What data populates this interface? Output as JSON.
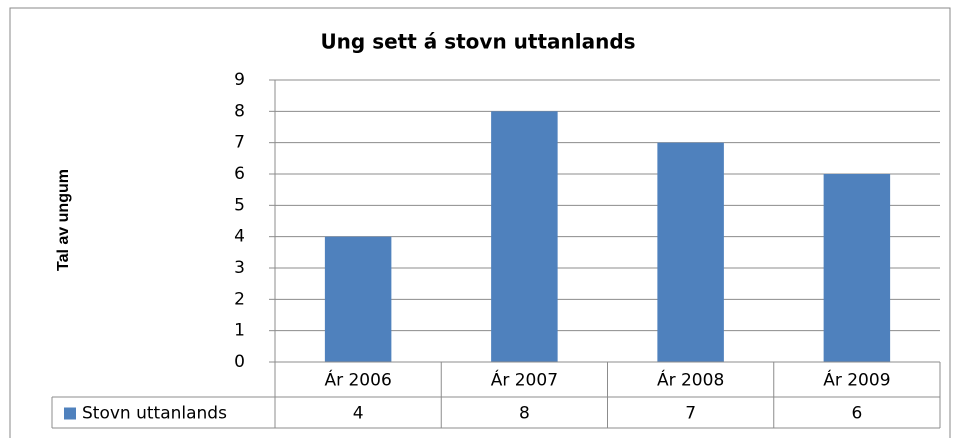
{
  "chart_data": {
    "type": "bar",
    "title": "Ung sett á stovn uttanlands",
    "y_label": "Tal av ungum",
    "categories": [
      "Ár 2006",
      "Ár 2007",
      "Ár 2008",
      "Ár 2009"
    ],
    "series": [
      {
        "name": "Stovn uttanlands",
        "color": "#4f81bd",
        "values": [
          4,
          8,
          7,
          6
        ]
      }
    ],
    "ylim": [
      0,
      9
    ],
    "yticks": [
      0,
      1,
      2,
      3,
      4,
      5,
      6,
      7,
      8,
      9
    ],
    "grid": true
  }
}
